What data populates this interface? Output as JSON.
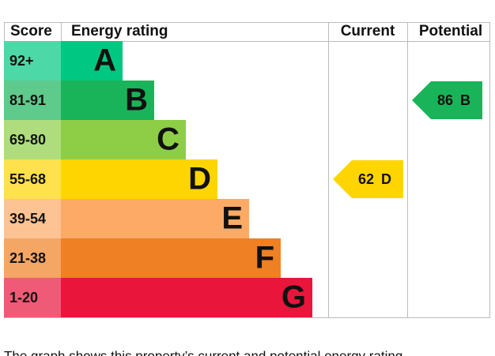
{
  "chart_data": {
    "type": "energy-rating",
    "headers": {
      "score": "Score",
      "rating": "Energy rating",
      "current": "Current",
      "potential": "Potential"
    },
    "bands": [
      {
        "score": "92+",
        "letter": "A",
        "color": "#00c781"
      },
      {
        "score": "81-91",
        "letter": "B",
        "color": "#19b459"
      },
      {
        "score": "69-80",
        "letter": "C",
        "color": "#8dce46"
      },
      {
        "score": "55-68",
        "letter": "D",
        "color": "#ffd500"
      },
      {
        "score": "39-54",
        "letter": "E",
        "color": "#fcaa65"
      },
      {
        "score": "21-38",
        "letter": "F",
        "color": "#ef8023"
      },
      {
        "score": "1-20",
        "letter": "G",
        "color": "#e9153b"
      }
    ],
    "current": {
      "value": 62,
      "letter": "D"
    },
    "potential": {
      "value": 86,
      "letter": "B"
    },
    "footnote": "The graph shows this property’s current and potential energy rating."
  }
}
